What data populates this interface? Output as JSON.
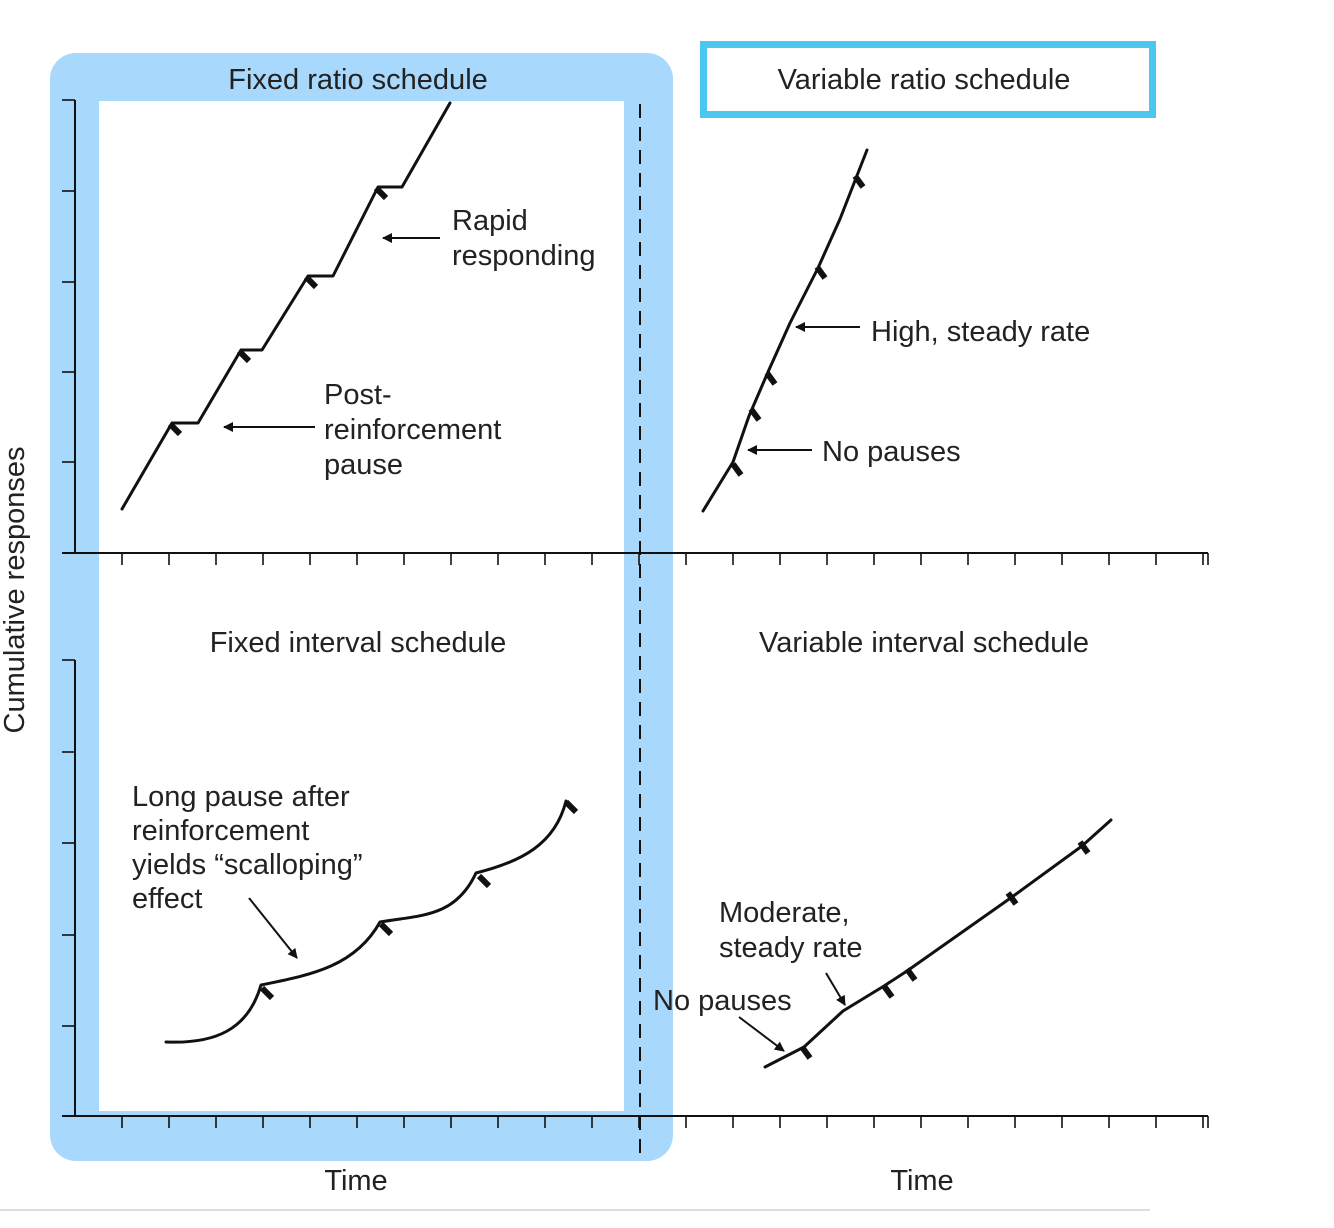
{
  "axes": {
    "y_title": "Cumulative responses",
    "x_title_left": "Time",
    "x_title_right": "Time"
  },
  "panels": {
    "fixed_ratio": {
      "title": "Fixed ratio schedule",
      "label_rapid": [
        "Rapid",
        "responding"
      ],
      "label_pause": [
        "Post-",
        "reinforcement",
        "pause"
      ]
    },
    "variable_ratio": {
      "title": "Variable ratio schedule",
      "label_high": "High, steady rate",
      "label_nopause": "No pauses"
    },
    "fixed_interval": {
      "title": "Fixed interval schedule",
      "label_scallop": [
        "Long pause after",
        "reinforcement",
        "yields “scalloping”",
        "effect"
      ]
    },
    "variable_interval": {
      "title": "Variable interval schedule",
      "label_moderate": [
        "Moderate,",
        "steady rate"
      ],
      "label_nopause": "No pauses"
    }
  },
  "highlight_colors": {
    "ratio_column_fill": "#a8d8fb",
    "title_box_border": "#4cc8ee",
    "curve": "#111111"
  }
}
